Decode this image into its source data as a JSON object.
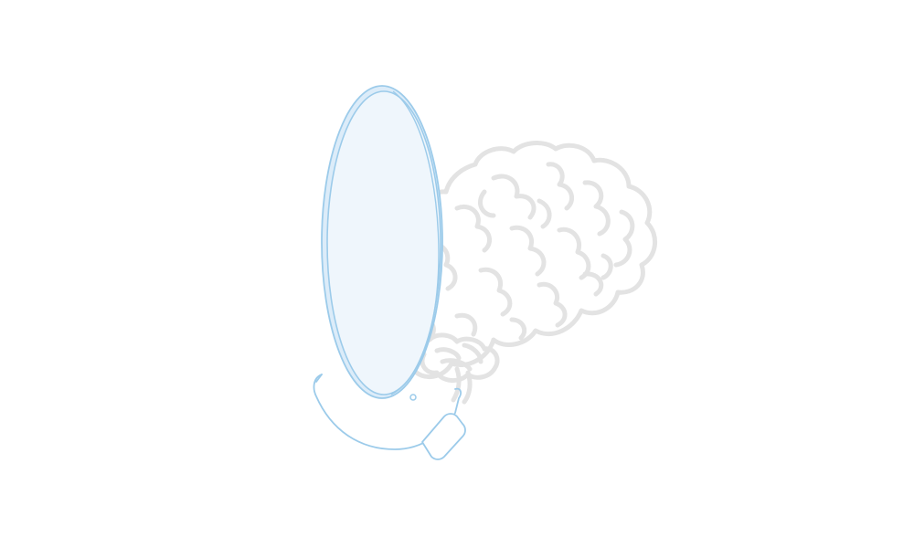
{
  "illustration": {
    "subject": "brain-and-mirror",
    "colors": {
      "brain_outline": "#e3e3e3",
      "mirror_line": "#9ccbea",
      "mirror_glass": "#dcecf9",
      "background": "#ffffff"
    }
  }
}
